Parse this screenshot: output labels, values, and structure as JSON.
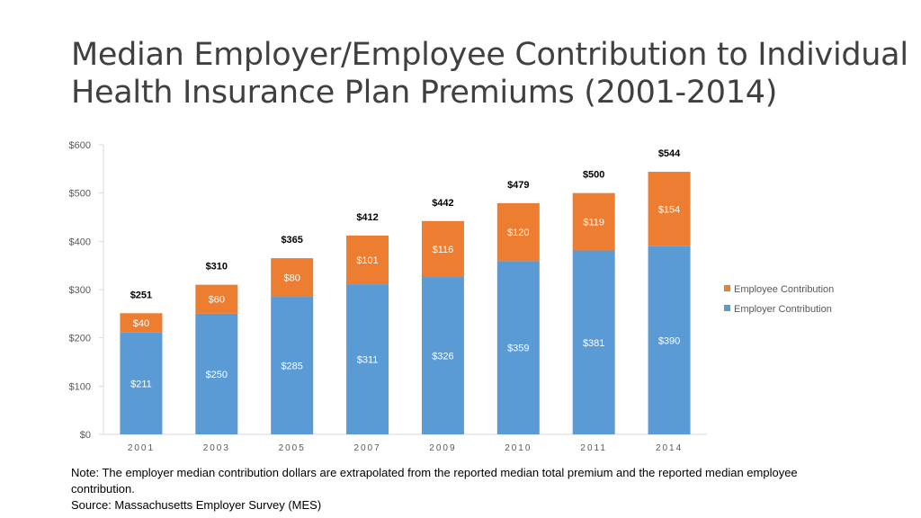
{
  "title_lines": [
    "Median Employer/Employee Contribution to Individual",
    "Health Insurance Plan Premiums (2001-2014)"
  ],
  "note": "Note: The employer median contribution dollars are extrapolated from the reported  median total premium and the reported median employee contribution.",
  "source": "Source: Massachusetts Employer Survey (MES)",
  "colors": {
    "employer": "#5b9bd5",
    "employee": "#ed7d31",
    "axis": "#d9d9d9",
    "text": "#595959"
  },
  "chart_data": {
    "type": "bar",
    "stacked": true,
    "categories": [
      "2001",
      "2003",
      "2005",
      "2007",
      "2009",
      "2010",
      "2011",
      "2014"
    ],
    "series": [
      {
        "name": "Employer Contribution",
        "values": [
          211,
          250,
          285,
          311,
          326,
          359,
          381,
          390
        ],
        "labels": [
          "$211",
          "$250",
          "$285",
          "$311",
          "$326",
          "$359",
          "$381",
          "$390"
        ]
      },
      {
        "name": "Employee Contribution",
        "values": [
          40,
          60,
          80,
          101,
          116,
          120,
          119,
          154
        ],
        "labels": [
          "$40",
          "$60",
          "$80",
          "$101",
          "$116",
          "$120",
          "$119",
          "$154"
        ]
      }
    ],
    "totals": [
      251,
      310,
      365,
      412,
      442,
      479,
      500,
      544
    ],
    "total_labels": [
      "$251",
      "$310",
      "$365",
      "$412",
      "$442",
      "$479",
      "$500",
      "$544"
    ],
    "ylim": [
      0,
      600
    ],
    "yticks": [
      0,
      100,
      200,
      300,
      400,
      500,
      600
    ],
    "ytick_labels": [
      "$0",
      "$100",
      "$200",
      "$300",
      "$400",
      "$500",
      "$600"
    ],
    "legend": [
      "Employee Contribution",
      "Employer Contribution"
    ],
    "legend_position": "right",
    "grid": false
  }
}
